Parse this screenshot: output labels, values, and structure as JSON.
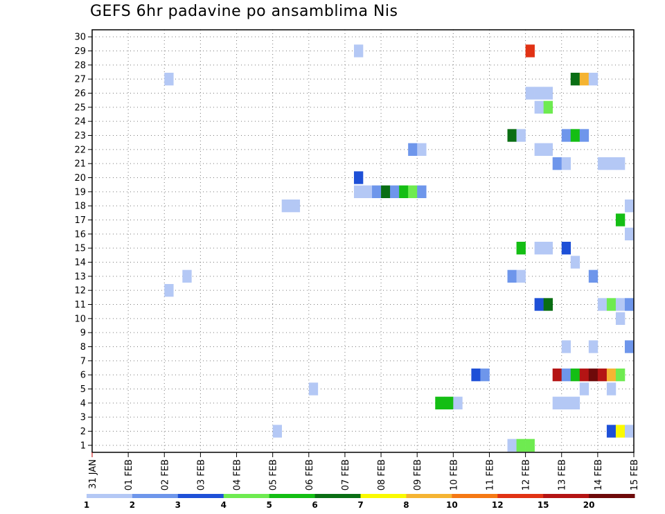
{
  "title": "GEFS 6hr padavine po ansamblima Nis",
  "chart_data": {
    "type": "heatmap",
    "title": "GEFS 6hr padavine po ansamblima Nis",
    "xlabel": "",
    "ylabel": "",
    "x_ticks": [
      "31 JAN",
      "01 FEB",
      "02 FEB",
      "03 FEB",
      "04 FEB",
      "05 FEB",
      "06 FEB",
      "07 FEB",
      "08 FEB",
      "09 FEB",
      "10 FEB",
      "11 FEB",
      "12 FEB",
      "13 FEB",
      "14 FEB",
      "15 FEB"
    ],
    "y_ticks": [
      "1",
      "2",
      "3",
      "4",
      "5",
      "6",
      "7",
      "8",
      "9",
      "10",
      "11",
      "12",
      "13",
      "14",
      "15",
      "16",
      "17",
      "18",
      "19",
      "20",
      "21",
      "22",
      "23",
      "24",
      "25",
      "26",
      "27",
      "28",
      "29",
      "30"
    ],
    "ylim": [
      0.5,
      30.5
    ],
    "xlim_days": [
      0,
      15
    ],
    "grid": true,
    "step_hours": 6,
    "legend": {
      "position": "bottom",
      "bin_labels": [
        "1",
        "2",
        "3",
        "4",
        "5",
        "6",
        "7",
        "8",
        "10",
        "12",
        "15",
        "20"
      ],
      "colors": [
        "#b4c8f5",
        "#6e96eb",
        "#1e50d7",
        "#6eeb50",
        "#14be14",
        "#0a6e14",
        "#fafa00",
        "#f5b432",
        "#f57814",
        "#e13214",
        "#b41414",
        "#6e0a0a"
      ]
    },
    "cells": [
      {
        "member": 29,
        "day": 7.25,
        "bin": 0
      },
      {
        "member": 29,
        "day": 12.0,
        "bin": 9
      },
      {
        "member": 27,
        "day": 2.0,
        "bin": 0
      },
      {
        "member": 27,
        "day": 13.25,
        "bin": 5
      },
      {
        "member": 27,
        "day": 13.5,
        "bin": 7
      },
      {
        "member": 27,
        "day": 13.75,
        "bin": 0
      },
      {
        "member": 26,
        "day": 12.0,
        "bin": 0
      },
      {
        "member": 26,
        "day": 12.25,
        "bin": 0
      },
      {
        "member": 26,
        "day": 12.5,
        "bin": 0
      },
      {
        "member": 25,
        "day": 12.25,
        "bin": 0
      },
      {
        "member": 25,
        "day": 12.5,
        "bin": 3
      },
      {
        "member": 23,
        "day": 11.5,
        "bin": 5
      },
      {
        "member": 23,
        "day": 11.75,
        "bin": 0
      },
      {
        "member": 23,
        "day": 13.0,
        "bin": 1
      },
      {
        "member": 23,
        "day": 13.25,
        "bin": 4
      },
      {
        "member": 23,
        "day": 13.5,
        "bin": 1
      },
      {
        "member": 22,
        "day": 8.75,
        "bin": 1
      },
      {
        "member": 22,
        "day": 9.0,
        "bin": 0
      },
      {
        "member": 22,
        "day": 12.25,
        "bin": 0
      },
      {
        "member": 22,
        "day": 12.5,
        "bin": 0
      },
      {
        "member": 21,
        "day": 12.75,
        "bin": 1
      },
      {
        "member": 21,
        "day": 13.0,
        "bin": 0
      },
      {
        "member": 21,
        "day": 14.0,
        "bin": 0
      },
      {
        "member": 21,
        "day": 14.25,
        "bin": 0
      },
      {
        "member": 21,
        "day": 14.5,
        "bin": 0
      },
      {
        "member": 20,
        "day": 7.25,
        "bin": 2
      },
      {
        "member": 19,
        "day": 7.25,
        "bin": 0
      },
      {
        "member": 19,
        "day": 7.5,
        "bin": 0
      },
      {
        "member": 19,
        "day": 7.75,
        "bin": 1
      },
      {
        "member": 19,
        "day": 8.0,
        "bin": 5
      },
      {
        "member": 19,
        "day": 8.25,
        "bin": 1
      },
      {
        "member": 19,
        "day": 8.5,
        "bin": 4
      },
      {
        "member": 19,
        "day": 8.75,
        "bin": 3
      },
      {
        "member": 19,
        "day": 9.0,
        "bin": 1
      },
      {
        "member": 18,
        "day": 5.25,
        "bin": 0
      },
      {
        "member": 18,
        "day": 5.5,
        "bin": 0
      },
      {
        "member": 18,
        "day": 14.75,
        "bin": 0
      },
      {
        "member": 17,
        "day": 14.5,
        "bin": 4
      },
      {
        "member": 16,
        "day": 14.75,
        "bin": 0
      },
      {
        "member": 15,
        "day": 11.75,
        "bin": 4
      },
      {
        "member": 15,
        "day": 12.25,
        "bin": 0
      },
      {
        "member": 15,
        "day": 12.5,
        "bin": 0
      },
      {
        "member": 15,
        "day": 13.0,
        "bin": 2
      },
      {
        "member": 14,
        "day": 13.25,
        "bin": 0
      },
      {
        "member": 13,
        "day": 2.5,
        "bin": 0
      },
      {
        "member": 13,
        "day": 11.5,
        "bin": 1
      },
      {
        "member": 13,
        "day": 11.75,
        "bin": 0
      },
      {
        "member": 13,
        "day": 13.75,
        "bin": 1
      },
      {
        "member": 12,
        "day": 2.0,
        "bin": 0
      },
      {
        "member": 11,
        "day": 12.25,
        "bin": 2
      },
      {
        "member": 11,
        "day": 12.5,
        "bin": 5
      },
      {
        "member": 11,
        "day": 14.0,
        "bin": 0
      },
      {
        "member": 11,
        "day": 14.25,
        "bin": 3
      },
      {
        "member": 11,
        "day": 14.5,
        "bin": 0
      },
      {
        "member": 11,
        "day": 14.75,
        "bin": 1
      },
      {
        "member": 10,
        "day": 14.5,
        "bin": 0
      },
      {
        "member": 8,
        "day": 13.0,
        "bin": 0
      },
      {
        "member": 8,
        "day": 13.75,
        "bin": 0
      },
      {
        "member": 8,
        "day": 14.75,
        "bin": 1
      },
      {
        "member": 6,
        "day": 10.5,
        "bin": 2
      },
      {
        "member": 6,
        "day": 10.75,
        "bin": 1
      },
      {
        "member": 6,
        "day": 12.75,
        "bin": 10
      },
      {
        "member": 6,
        "day": 13.0,
        "bin": 1
      },
      {
        "member": 6,
        "day": 13.25,
        "bin": 4
      },
      {
        "member": 6,
        "day": 13.5,
        "bin": 10
      },
      {
        "member": 6,
        "day": 13.75,
        "bin": 11
      },
      {
        "member": 6,
        "day": 14.0,
        "bin": 10
      },
      {
        "member": 6,
        "day": 14.25,
        "bin": 7
      },
      {
        "member": 6,
        "day": 14.5,
        "bin": 3
      },
      {
        "member": 5,
        "day": 6.0,
        "bin": 0
      },
      {
        "member": 5,
        "day": 13.5,
        "bin": 0
      },
      {
        "member": 5,
        "day": 14.25,
        "bin": 0
      },
      {
        "member": 4,
        "day": 9.5,
        "bin": 4
      },
      {
        "member": 4,
        "day": 9.75,
        "bin": 4
      },
      {
        "member": 4,
        "day": 10.0,
        "bin": 0
      },
      {
        "member": 4,
        "day": 12.75,
        "bin": 0
      },
      {
        "member": 4,
        "day": 13.0,
        "bin": 0
      },
      {
        "member": 4,
        "day": 13.25,
        "bin": 0
      },
      {
        "member": 2,
        "day": 5.0,
        "bin": 0
      },
      {
        "member": 2,
        "day": 14.25,
        "bin": 2
      },
      {
        "member": 2,
        "day": 14.5,
        "bin": 6
      },
      {
        "member": 2,
        "day": 14.75,
        "bin": 0
      },
      {
        "member": 1,
        "day": 11.5,
        "bin": 0
      },
      {
        "member": 1,
        "day": 11.75,
        "bin": 3
      },
      {
        "member": 1,
        "day": 12.0,
        "bin": 3
      }
    ]
  }
}
